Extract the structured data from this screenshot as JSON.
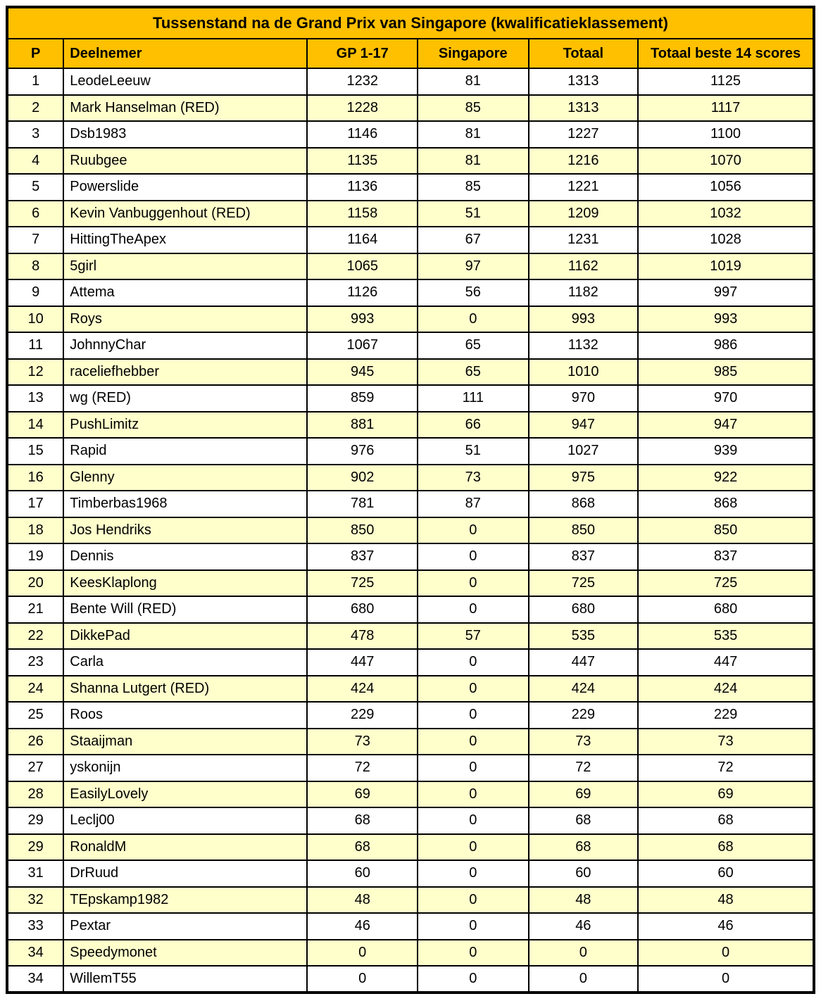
{
  "chart_data": {
    "type": "table",
    "title": "Tussenstand na de Grand Prix van Singapore (kwalificatieklassement)",
    "columns": [
      "P",
      "Deelnemer",
      "GP 1-17",
      "Singapore",
      "Totaal",
      "Totaal beste 14 scores"
    ],
    "rows": [
      [
        1,
        "LeodeLeeuw",
        1232,
        81,
        1313,
        1125
      ],
      [
        2,
        "Mark Hanselman (RED)",
        1228,
        85,
        1313,
        1117
      ],
      [
        3,
        "Dsb1983",
        1146,
        81,
        1227,
        1100
      ],
      [
        4,
        "Ruubgee",
        1135,
        81,
        1216,
        1070
      ],
      [
        5,
        "Powerslide",
        1136,
        85,
        1221,
        1056
      ],
      [
        6,
        "Kevin Vanbuggenhout (RED)",
        1158,
        51,
        1209,
        1032
      ],
      [
        7,
        "HittingTheApex",
        1164,
        67,
        1231,
        1028
      ],
      [
        8,
        "5girl",
        1065,
        97,
        1162,
        1019
      ],
      [
        9,
        "Attema",
        1126,
        56,
        1182,
        997
      ],
      [
        10,
        "Roys",
        993,
        0,
        993,
        993
      ],
      [
        11,
        "JohnnyChar",
        1067,
        65,
        1132,
        986
      ],
      [
        12,
        "raceliefhebber",
        945,
        65,
        1010,
        985
      ],
      [
        13,
        "wg (RED)",
        859,
        111,
        970,
        970
      ],
      [
        14,
        "PushLimitz",
        881,
        66,
        947,
        947
      ],
      [
        15,
        "Rapid",
        976,
        51,
        1027,
        939
      ],
      [
        16,
        "Glenny",
        902,
        73,
        975,
        922
      ],
      [
        17,
        "Timberbas1968",
        781,
        87,
        868,
        868
      ],
      [
        18,
        "Jos Hendriks",
        850,
        0,
        850,
        850
      ],
      [
        19,
        "Dennis",
        837,
        0,
        837,
        837
      ],
      [
        20,
        "KeesKlaplong",
        725,
        0,
        725,
        725
      ],
      [
        21,
        "Bente Will (RED)",
        680,
        0,
        680,
        680
      ],
      [
        22,
        "DikkePad",
        478,
        57,
        535,
        535
      ],
      [
        23,
        "Carla",
        447,
        0,
        447,
        447
      ],
      [
        24,
        "Shanna Lutgert (RED)",
        424,
        0,
        424,
        424
      ],
      [
        25,
        "Roos",
        229,
        0,
        229,
        229
      ],
      [
        26,
        "Staaijman",
        73,
        0,
        73,
        73
      ],
      [
        27,
        "yskonijn",
        72,
        0,
        72,
        72
      ],
      [
        28,
        "EasilyLovely",
        69,
        0,
        69,
        69
      ],
      [
        29,
        "Leclj00",
        68,
        0,
        68,
        68
      ],
      [
        29,
        "RonaldM",
        68,
        0,
        68,
        68
      ],
      [
        31,
        "DrRuud",
        60,
        0,
        60,
        60
      ],
      [
        32,
        "TEpskamp1982",
        48,
        0,
        48,
        48
      ],
      [
        33,
        "Pextar",
        46,
        0,
        46,
        46
      ],
      [
        34,
        "Speedymonet",
        0,
        0,
        0,
        0
      ],
      [
        34,
        "WillemT55",
        0,
        0,
        0,
        0
      ]
    ],
    "layout_hints": {
      "striping": "alternate rows highlighted starting with row 2",
      "grid": true
    }
  },
  "colors": {
    "header_bg": "#FFC000",
    "row_alt_bg": "#FFFFCC",
    "row_bg": "#FFFFFF",
    "border": "#000000",
    "text": "#000000"
  }
}
